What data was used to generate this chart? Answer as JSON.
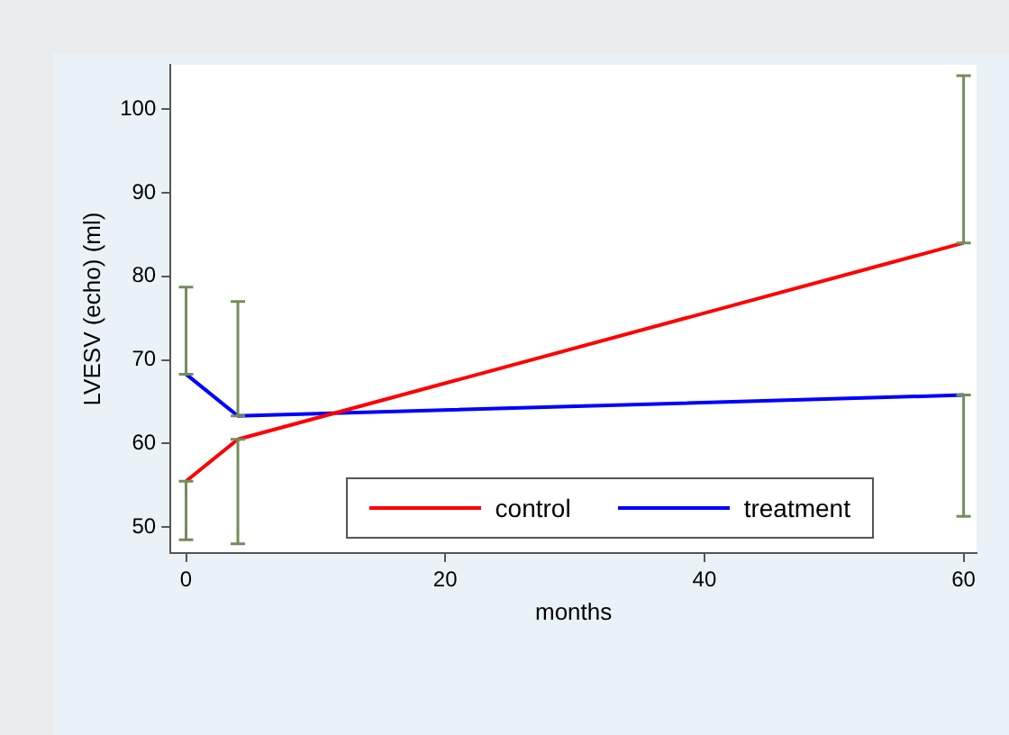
{
  "chart_data": {
    "type": "line",
    "xlabel": "months",
    "ylabel": "LVESV (echo) (ml)",
    "x": [
      0,
      4,
      60
    ],
    "series": [
      {
        "name": "control",
        "color": "#ff0000",
        "values": [
          55.5,
          60.5,
          84
        ],
        "errors": [
          [
            48.5,
            55.5
          ],
          [
            48,
            60.5
          ],
          [
            84,
            104
          ]
        ]
      },
      {
        "name": "treatment",
        "color": "#0000ff",
        "values": [
          68.3,
          63.3,
          65.8
        ],
        "errors": [
          [
            68.3,
            78.7
          ],
          [
            63.3,
            77
          ],
          [
            51.3,
            65.8
          ]
        ]
      }
    ],
    "xlim": [
      -1.2,
      61
    ],
    "xticks": [
      0,
      20,
      40,
      60
    ],
    "ylim": [
      46.9,
      105.3
    ],
    "yticks": [
      50,
      60,
      70,
      80,
      90,
      100
    ],
    "grid": false,
    "legend": "bottom",
    "marker": "none",
    "line_style": "solid"
  }
}
